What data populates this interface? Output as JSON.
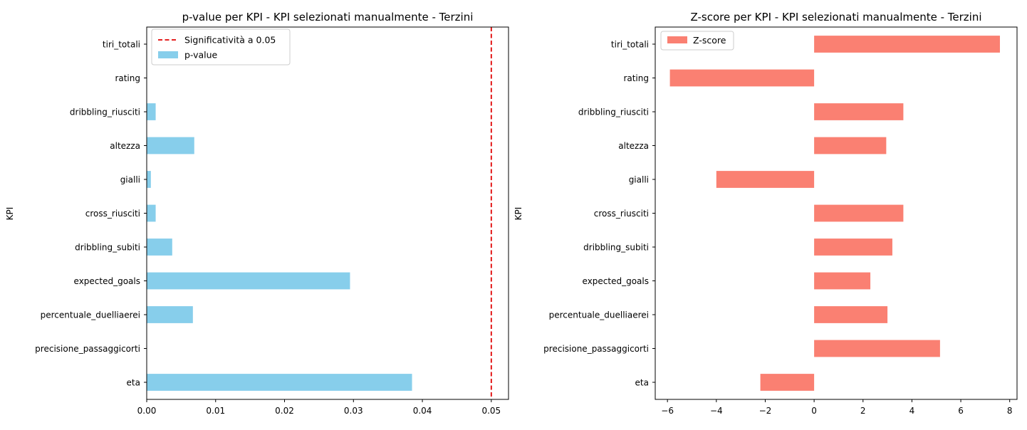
{
  "chart_data": [
    {
      "type": "bar",
      "orientation": "horizontal",
      "title": "p-value per KPI - KPI selezionati manualmente - Terzini",
      "xlabel": "",
      "ylabel": "KPI",
      "categories": [
        "eta",
        "precisione_passaggicorti",
        "percentuale_duelliaerei",
        "expected_goals",
        "dribbling_subiti",
        "cross_riusciti",
        "gialli",
        "altezza",
        "dribbling_riusciti",
        "rating",
        "tiri_totali"
      ],
      "series": [
        {
          "name": "p-value",
          "color": "#87ceeb",
          "values": [
            0.0385,
            0.0,
            0.0067,
            0.0295,
            0.0037,
            0.0013,
            0.0006,
            0.0069,
            0.0013,
            0.0,
            0.0
          ]
        }
      ],
      "reference_line": {
        "label": "Significatività a 0.05",
        "value": 0.05,
        "color": "#e00000",
        "style": "dashed"
      },
      "xlim": [
        0,
        0.0525
      ],
      "xticks": [
        0,
        0.01,
        0.02,
        0.03,
        0.04,
        0.05
      ],
      "xtick_labels": [
        "0.00",
        "0.01",
        "0.02",
        "0.03",
        "0.04",
        "0.05"
      ],
      "grid": false,
      "legend": {
        "position": "top-left",
        "entries": [
          "Significatività a 0.05",
          "p-value"
        ]
      }
    },
    {
      "type": "bar",
      "orientation": "horizontal",
      "title": "Z-score per KPI - KPI selezionati manualmente - Terzini",
      "xlabel": "",
      "ylabel": "KPI",
      "categories": [
        "eta",
        "precisione_passaggicorti",
        "percentuale_duelliaerei",
        "expected_goals",
        "dribbling_subiti",
        "cross_riusciti",
        "gialli",
        "altezza",
        "dribbling_riusciti",
        "rating",
        "tiri_totali"
      ],
      "series": [
        {
          "name": "Z-score",
          "color": "#fa8072",
          "values": [
            -2.2,
            5.15,
            3.0,
            2.3,
            3.2,
            3.65,
            -4.0,
            2.95,
            3.65,
            -5.9,
            7.6
          ]
        }
      ],
      "xlim": [
        -6.5,
        8.3
      ],
      "xticks": [
        -6,
        -4,
        -2,
        0,
        2,
        4,
        6,
        8
      ],
      "xtick_labels": [
        "−6",
        "−4",
        "−2",
        "0",
        "2",
        "4",
        "6",
        "8"
      ],
      "grid": false,
      "legend": {
        "position": "top-left",
        "entries": [
          "Z-score"
        ]
      }
    }
  ]
}
